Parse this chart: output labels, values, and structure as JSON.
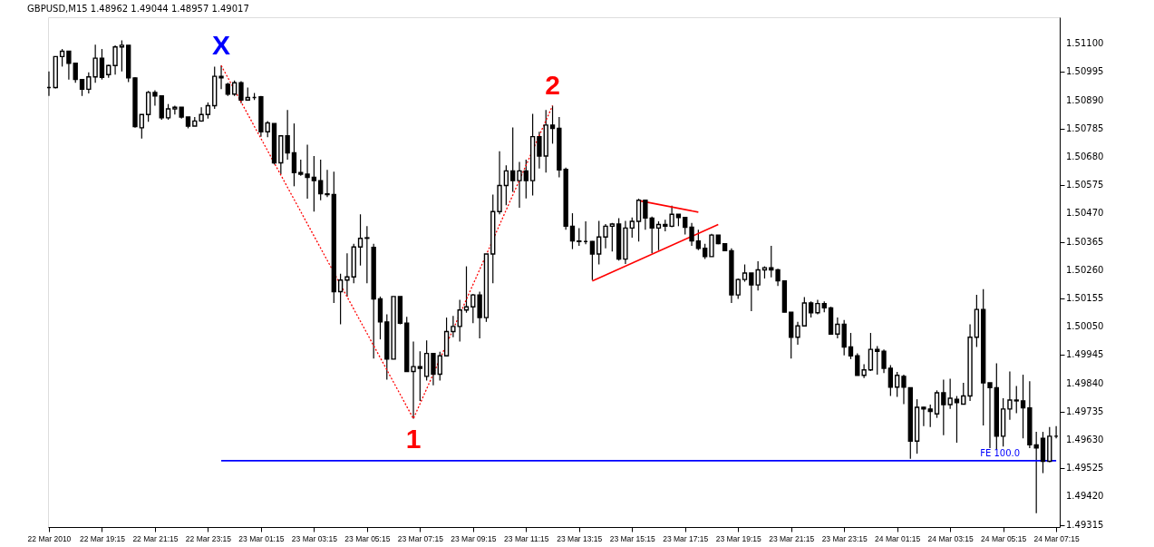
{
  "chart_data": {
    "type": "candlestick",
    "title": "GBPUSD,M15  1.48962 1.49044 1.48957 1.49017",
    "color": "#000000",
    "x": [
      "2010-03-22T17:15",
      "2010-03-22T17:30",
      "2010-03-22T17:45",
      "2010-03-22T18:00",
      "2010-03-22T18:15",
      "2010-03-22T18:30",
      "2010-03-22T18:45",
      "2010-03-22T19:00",
      "2010-03-22T19:15",
      "2010-03-22T19:30",
      "2010-03-22T19:45",
      "2010-03-22T20:00",
      "2010-03-22T20:15",
      "2010-03-22T20:30",
      "2010-03-22T20:45",
      "2010-03-22T21:00",
      "2010-03-22T21:15",
      "2010-03-22T21:30",
      "2010-03-22T21:45",
      "2010-03-22T22:00",
      "2010-03-22T22:15",
      "2010-03-22T22:30",
      "2010-03-22T22:45",
      "2010-03-22T23:00",
      "2010-03-22T23:15",
      "2010-03-22T23:30",
      "2010-03-22T23:45",
      "2010-03-23T00:00",
      "2010-03-23T00:15",
      "2010-03-23T00:30",
      "2010-03-23T00:45",
      "2010-03-23T01:00",
      "2010-03-23T01:15",
      "2010-03-23T01:30",
      "2010-03-23T01:45",
      "2010-03-23T02:00",
      "2010-03-23T02:15",
      "2010-03-23T02:30",
      "2010-03-23T02:45",
      "2010-03-23T03:00",
      "2010-03-23T03:15",
      "2010-03-23T03:30",
      "2010-03-23T03:45",
      "2010-03-23T04:00",
      "2010-03-23T04:15",
      "2010-03-23T04:30",
      "2010-03-23T04:45",
      "2010-03-23T05:00",
      "2010-03-23T05:15",
      "2010-03-23T05:30",
      "2010-03-23T05:45",
      "2010-03-23T06:00",
      "2010-03-23T06:15",
      "2010-03-23T06:30",
      "2010-03-23T06:45",
      "2010-03-23T07:00",
      "2010-03-23T07:15",
      "2010-03-23T07:30",
      "2010-03-23T07:45",
      "2010-03-23T08:00",
      "2010-03-23T08:15",
      "2010-03-23T08:30",
      "2010-03-23T08:45",
      "2010-03-23T09:00",
      "2010-03-23T09:15",
      "2010-03-23T09:30",
      "2010-03-23T09:45",
      "2010-03-23T10:00",
      "2010-03-23T10:15",
      "2010-03-23T10:30",
      "2010-03-23T10:45",
      "2010-03-23T11:00",
      "2010-03-23T11:15",
      "2010-03-23T11:30",
      "2010-03-23T11:45",
      "2010-03-23T12:00",
      "2010-03-23T12:15",
      "2010-03-23T12:30",
      "2010-03-23T12:45",
      "2010-03-23T13:00",
      "2010-03-23T13:15",
      "2010-03-23T13:30",
      "2010-03-23T13:45",
      "2010-03-23T14:00",
      "2010-03-23T14:15",
      "2010-03-23T14:30",
      "2010-03-23T14:45",
      "2010-03-23T15:00",
      "2010-03-23T15:15",
      "2010-03-23T15:30",
      "2010-03-23T15:45",
      "2010-03-23T16:00",
      "2010-03-23T16:15",
      "2010-03-23T16:30",
      "2010-03-23T16:45",
      "2010-03-23T17:00",
      "2010-03-23T17:15",
      "2010-03-23T17:30",
      "2010-03-23T17:45",
      "2010-03-23T18:00",
      "2010-03-23T18:15",
      "2010-03-23T18:30",
      "2010-03-23T18:45",
      "2010-03-23T19:00",
      "2010-03-23T19:15",
      "2010-03-23T19:30",
      "2010-03-23T19:45",
      "2010-03-23T20:00",
      "2010-03-23T20:15",
      "2010-03-23T20:30",
      "2010-03-23T20:45",
      "2010-03-23T21:00",
      "2010-03-23T21:15",
      "2010-03-23T21:30",
      "2010-03-23T21:45",
      "2010-03-23T22:00",
      "2010-03-23T22:15",
      "2010-03-23T22:30",
      "2010-03-23T22:45",
      "2010-03-23T23:00",
      "2010-03-23T23:15",
      "2010-03-23T23:30",
      "2010-03-23T23:45",
      "2010-03-24T00:00",
      "2010-03-24T00:15",
      "2010-03-24T00:30",
      "2010-03-24T00:45",
      "2010-03-24T01:00",
      "2010-03-24T01:15",
      "2010-03-24T01:30",
      "2010-03-24T01:45",
      "2010-03-24T02:00",
      "2010-03-24T02:15",
      "2010-03-24T02:30",
      "2010-03-24T02:45",
      "2010-03-24T03:00",
      "2010-03-24T03:15",
      "2010-03-24T03:30",
      "2010-03-24T03:45",
      "2010-03-24T04:00",
      "2010-03-24T04:15",
      "2010-03-24T04:30",
      "2010-03-24T04:45",
      "2010-03-24T05:00",
      "2010-03-24T05:15",
      "2010-03-24T05:30",
      "2010-03-24T05:45",
      "2010-03-24T06:00",
      "2010-03-24T06:15",
      "2010-03-24T06:30",
      "2010-03-24T06:45",
      "2010-03-24T07:00",
      "2010-03-24T07:15"
    ],
    "ohlc": [
      [
        1.50937,
        1.50997,
        1.50906,
        1.50937
      ],
      [
        1.50937,
        1.51052,
        1.50934,
        1.51052
      ],
      [
        1.51052,
        1.5108,
        1.51015,
        1.51072
      ],
      [
        1.51072,
        1.51072,
        1.50967,
        1.51027
      ],
      [
        1.51027,
        1.5103,
        1.50955,
        1.50967
      ],
      [
        1.50967,
        1.50967,
        1.50906,
        1.50931
      ],
      [
        1.50931,
        1.50994,
        1.50915,
        1.50977
      ],
      [
        1.50977,
        1.51096,
        1.50955,
        1.51046
      ],
      [
        1.51046,
        1.5108,
        1.50967,
        1.50975
      ],
      [
        1.50985,
        1.51021,
        1.50973,
        1.51019
      ],
      [
        1.51019,
        1.51094,
        1.50985,
        1.51088
      ],
      [
        1.51088,
        1.51112,
        1.50997,
        1.51094
      ],
      [
        1.51094,
        1.51094,
        1.50957,
        1.50973
      ],
      [
        1.50973,
        1.50975,
        1.50788,
        1.50792
      ],
      [
        1.50788,
        1.50837,
        1.50748,
        1.50837
      ],
      [
        1.50837,
        1.50925,
        1.5081,
        1.50919
      ],
      [
        1.50919,
        1.50927,
        1.5087,
        1.50906
      ],
      [
        1.50906,
        1.50906,
        1.50818,
        1.50825
      ],
      [
        1.50825,
        1.50876,
        1.50818,
        1.50858
      ],
      [
        1.50858,
        1.5087,
        1.50837,
        1.50864
      ],
      [
        1.50864,
        1.50864,
        1.50822,
        1.50828
      ],
      [
        1.50828,
        1.50828,
        1.50786,
        1.50794
      ],
      [
        1.50794,
        1.50828,
        1.50794,
        1.50813
      ],
      [
        1.50813,
        1.50864,
        1.5081,
        1.50837
      ],
      [
        1.50837,
        1.50882,
        1.50822,
        1.5087
      ],
      [
        1.5087,
        1.51015,
        1.50858,
        1.50979
      ],
      [
        1.50979,
        1.51019,
        1.50931,
        1.50973
      ],
      [
        1.50949,
        1.50955,
        1.50906,
        1.50913
      ],
      [
        1.50913,
        1.50963,
        1.50906,
        1.50955
      ],
      [
        1.50955,
        1.50961,
        1.50879,
        1.50891
      ],
      [
        1.50891,
        1.50937,
        1.50889,
        1.509
      ],
      [
        1.509,
        1.50917,
        1.50891,
        1.509
      ],
      [
        1.50903,
        1.50906,
        1.50755,
        1.50773
      ],
      [
        1.50773,
        1.50813,
        1.50753,
        1.50806
      ],
      [
        1.50804,
        1.50804,
        1.50652,
        1.50658
      ],
      [
        1.50658,
        1.50761,
        1.50616,
        1.50758
      ],
      [
        1.50758,
        1.50854,
        1.5067,
        1.50695
      ],
      [
        1.50695,
        1.50804,
        1.50571,
        1.50622
      ],
      [
        1.50622,
        1.5067,
        1.5061,
        1.50616
      ],
      [
        1.50616,
        1.50725,
        1.50525,
        1.50604
      ],
      [
        1.50604,
        1.50683,
        1.50477,
        1.50592
      ],
      [
        1.50592,
        1.5067,
        1.50519,
        1.50543
      ],
      [
        1.50543,
        1.50632,
        1.50531,
        1.5054
      ],
      [
        1.5054,
        1.50625,
        1.50138,
        1.5018
      ],
      [
        1.5018,
        1.50247,
        1.50059,
        1.50223
      ],
      [
        1.50223,
        1.50322,
        1.50162,
        1.50235
      ],
      [
        1.50235,
        1.50358,
        1.50211,
        1.50346
      ],
      [
        1.50346,
        1.50467,
        1.50277,
        1.50378
      ],
      [
        1.50378,
        1.50423,
        1.50211,
        1.5038
      ],
      [
        1.50344,
        1.50358,
        1.49932,
        1.50153
      ],
      [
        1.50153,
        1.50162,
        1.50003,
        1.50068
      ],
      [
        1.50068,
        1.50096,
        1.49854,
        1.4993
      ],
      [
        1.4993,
        1.50162,
        1.4993,
        1.50162
      ],
      [
        1.50162,
        1.50162,
        1.50059,
        1.50063
      ],
      [
        1.50063,
        1.50087,
        1.49882,
        1.49884
      ],
      [
        1.49884,
        1.49995,
        1.49709,
        1.49902
      ],
      [
        1.49902,
        1.49959,
        1.49775,
        1.49896
      ],
      [
        1.49866,
        1.49999,
        1.4985,
        1.49951
      ],
      [
        1.49951,
        1.49951,
        1.49833,
        1.49874
      ],
      [
        1.49874,
        1.49957,
        1.4985,
        1.49942
      ],
      [
        1.49942,
        1.50084,
        1.49942,
        1.50032
      ],
      [
        1.50032,
        1.5009,
        1.50011,
        1.50051
      ],
      [
        1.50051,
        1.5015,
        1.49995,
        1.50112
      ],
      [
        1.50112,
        1.50274,
        1.50102,
        1.50124
      ],
      [
        1.50124,
        1.50172,
        1.50063,
        1.50168
      ],
      [
        1.50168,
        1.5018,
        1.50007,
        1.50084
      ],
      [
        1.50084,
        1.5032,
        1.50068,
        1.5032
      ],
      [
        1.5032,
        1.5054,
        1.50211,
        1.50477
      ],
      [
        1.50477,
        1.50701,
        1.50467,
        1.50574
      ],
      [
        1.50574,
        1.50649,
        1.50501,
        1.50628
      ],
      [
        1.50628,
        1.50789,
        1.5055,
        1.50592
      ],
      [
        1.50592,
        1.50661,
        1.50491,
        1.50628
      ],
      [
        1.50628,
        1.5067,
        1.50526,
        1.50592
      ],
      [
        1.50592,
        1.5084,
        1.50537,
        1.50755
      ],
      [
        1.50755,
        1.50773,
        1.50637,
        1.50683
      ],
      [
        1.50683,
        1.50854,
        1.50622,
        1.50798
      ],
      [
        1.50798,
        1.5087,
        1.50729,
        1.50786
      ],
      [
        1.50786,
        1.50828,
        1.50604,
        1.50632
      ],
      [
        1.50634,
        1.5064,
        1.5041,
        1.50423
      ],
      [
        1.50423,
        1.50471,
        1.50338,
        1.50368
      ],
      [
        1.50368,
        1.50416,
        1.5035,
        1.50366
      ],
      [
        1.50366,
        1.50441,
        1.50356,
        1.50366
      ],
      [
        1.50366,
        1.50368,
        1.50223,
        1.5032
      ],
      [
        1.5032,
        1.50443,
        1.50281,
        1.50383
      ],
      [
        1.50383,
        1.50431,
        1.50341,
        1.50423
      ],
      [
        1.50423,
        1.50435,
        1.50329,
        1.50431
      ],
      [
        1.50431,
        1.50453,
        1.50295,
        1.50301
      ],
      [
        1.50301,
        1.50443,
        1.50283,
        1.50416
      ],
      [
        1.50416,
        1.50455,
        1.5038,
        1.50441
      ],
      [
        1.50441,
        1.50525,
        1.50366,
        1.50519
      ],
      [
        1.50519,
        1.50519,
        1.5041,
        1.50453
      ],
      [
        1.50453,
        1.50459,
        1.50322,
        1.50416
      ],
      [
        1.50416,
        1.50441,
        1.50334,
        1.50429
      ],
      [
        1.50429,
        1.50447,
        1.50404,
        1.50423
      ],
      [
        1.50423,
        1.50499,
        1.50419,
        1.50467
      ],
      [
        1.50467,
        1.50467,
        1.50423,
        1.50455
      ],
      [
        1.50455,
        1.50455,
        1.50392,
        1.50419
      ],
      [
        1.50419,
        1.50435,
        1.5035,
        1.50368
      ],
      [
        1.50368,
        1.5041,
        1.50334,
        1.50341
      ],
      [
        1.50341,
        1.50358,
        1.50301,
        1.5031
      ],
      [
        1.5031,
        1.50395,
        1.5031,
        1.5039
      ],
      [
        1.5039,
        1.5039,
        1.50356,
        1.50358
      ],
      [
        1.50358,
        1.50358,
        1.50332,
        1.50332
      ],
      [
        1.50332,
        1.50341,
        1.50138,
        1.50168
      ],
      [
        1.50168,
        1.50229,
        1.50153,
        1.50225
      ],
      [
        1.50225,
        1.50281,
        1.50217,
        1.50249
      ],
      [
        1.50249,
        1.50249,
        1.50108,
        1.50205
      ],
      [
        1.50205,
        1.50293,
        1.50184,
        1.50261
      ],
      [
        1.50261,
        1.50274,
        1.50229,
        1.50269
      ],
      [
        1.50269,
        1.5035,
        1.50233,
        1.50261
      ],
      [
        1.50261,
        1.50265,
        1.50201,
        1.5022
      ],
      [
        1.5022,
        1.5022,
        1.50104,
        1.50104
      ],
      [
        1.50104,
        1.50104,
        1.49932,
        1.50011
      ],
      [
        1.50011,
        1.50068,
        1.49983,
        1.50053
      ],
      [
        1.50053,
        1.5016,
        1.50053,
        1.50138
      ],
      [
        1.50138,
        1.50144,
        1.50084,
        1.50102
      ],
      [
        1.50102,
        1.5015,
        1.50096,
        1.50136
      ],
      [
        1.50136,
        1.50144,
        1.50104,
        1.5012
      ],
      [
        1.5012,
        1.50124,
        1.5002,
        1.50023
      ],
      [
        1.50023,
        1.50084,
        1.50007,
        1.50059
      ],
      [
        1.50059,
        1.50075,
        1.49944,
        1.49975
      ],
      [
        1.49975,
        1.50027,
        1.4993,
        1.49942
      ],
      [
        1.49942,
        1.49951,
        1.4987,
        1.4987
      ],
      [
        1.4987,
        1.49911,
        1.4986,
        1.4989
      ],
      [
        1.4989,
        1.50027,
        1.49886,
        1.49966
      ],
      [
        1.49966,
        1.49978,
        1.49872,
        1.49959
      ],
      [
        1.49959,
        1.49966,
        1.49878,
        1.49896
      ],
      [
        1.49896,
        1.49908,
        1.49793,
        1.49826
      ],
      [
        1.49826,
        1.49882,
        1.4979,
        1.4987
      ],
      [
        1.49866,
        1.49872,
        1.49763,
        1.49826
      ],
      [
        1.49824,
        1.49824,
        1.4956,
        1.49626
      ],
      [
        1.49626,
        1.49781,
        1.49579,
        1.49751
      ],
      [
        1.49751,
        1.49753,
        1.49681,
        1.49745
      ],
      [
        1.49745,
        1.49761,
        1.49678,
        1.49736
      ],
      [
        1.49727,
        1.49814,
        1.49712,
        1.49805
      ],
      [
        1.49805,
        1.49854,
        1.49648,
        1.49761
      ],
      [
        1.49761,
        1.49857,
        1.49745,
        1.49785
      ],
      [
        1.49781,
        1.49793,
        1.4962,
        1.49769
      ],
      [
        1.49763,
        1.49842,
        1.49763,
        1.49793
      ],
      [
        1.49793,
        1.50059,
        1.49775,
        1.50011
      ],
      [
        1.50011,
        1.50168,
        1.49975,
        1.50114
      ],
      [
        1.50114,
        1.50189,
        1.49684,
        1.49842
      ],
      [
        1.49842,
        1.49842,
        1.496,
        1.49824
      ],
      [
        1.49824,
        1.49914,
        1.49594,
        1.49644
      ],
      [
        1.49644,
        1.49785,
        1.49606,
        1.49745
      ],
      [
        1.49745,
        1.49884,
        1.49705,
        1.49778
      ],
      [
        1.49778,
        1.4983,
        1.49729,
        1.49775
      ],
      [
        1.49775,
        1.49872,
        1.49636,
        1.49749
      ],
      [
        1.49749,
        1.49848,
        1.496,
        1.49612
      ],
      [
        1.49612,
        1.4966,
        1.49358,
        1.496
      ],
      [
        1.49636,
        1.4966,
        1.49507,
        1.49551
      ],
      [
        1.49551,
        1.49678,
        1.49548,
        1.49644
      ],
      [
        1.49644,
        1.49681,
        1.49636,
        1.49644
      ]
    ],
    "series": [
      {
        "type": "line",
        "color": "#ff0000",
        "line_style": "dotted",
        "x": [
          "2010-03-22T23:45",
          "2010-03-23T07:00",
          "2010-03-23T12:15"
        ],
        "values": [
          1.51019,
          1.49709,
          1.5087
        ]
      },
      {
        "type": "line",
        "color": "#ff0000",
        "line_style": "solid",
        "x": [
          "2010-03-23T15:30",
          "2010-03-23T17:45"
        ],
        "values": [
          1.50518,
          1.50475
        ]
      },
      {
        "type": "line",
        "color": "#ff0000",
        "line_style": "solid",
        "x": [
          "2010-03-23T13:45",
          "2010-03-23T18:30"
        ],
        "values": [
          1.5022,
          1.50429
        ]
      },
      {
        "type": "line",
        "name": "FE 100.0",
        "color": "#0000ff",
        "line_style": "solid",
        "x": [
          "2010-03-22T23:45",
          "2010-03-24T07:15"
        ],
        "values": [
          1.49553,
          1.49553
        ]
      }
    ],
    "annotations": [
      {
        "text": "X",
        "x": "2010-03-22T23:45",
        "y": 1.51019
      },
      {
        "text": "1",
        "x": "2010-03-23T07:00",
        "y": 1.49709
      },
      {
        "text": "2",
        "x": "2010-03-23T12:15",
        "y": 1.5087
      }
    ],
    "xlim": [
      "2010-03-22T17:13",
      "2010-03-24T07:23"
    ],
    "xticks": [
      {
        "value": "2010-03-22T17:15",
        "label": "22 Mar 2010"
      },
      {
        "value": "2010-03-22T19:15",
        "label": "22 Mar 19:15"
      },
      {
        "value": "2010-03-22T21:15",
        "label": "22 Mar 21:15"
      },
      {
        "value": "2010-03-22T23:15",
        "label": "22 Mar 23:15"
      },
      {
        "value": "2010-03-23T01:15",
        "label": "23 Mar 01:15"
      },
      {
        "value": "2010-03-23T03:15",
        "label": "23 Mar 03:15"
      },
      {
        "value": "2010-03-23T05:15",
        "label": "23 Mar 05:15"
      },
      {
        "value": "2010-03-23T07:15",
        "label": "23 Mar 07:15"
      },
      {
        "value": "2010-03-23T09:15",
        "label": "23 Mar 09:15"
      },
      {
        "value": "2010-03-23T11:15",
        "label": "23 Mar 11:15"
      },
      {
        "value": "2010-03-23T13:15",
        "label": "23 Mar 13:15"
      },
      {
        "value": "2010-03-23T15:15",
        "label": "23 Mar 15:15"
      },
      {
        "value": "2010-03-23T17:15",
        "label": "23 Mar 17:15"
      },
      {
        "value": "2010-03-23T19:15",
        "label": "23 Mar 19:15"
      },
      {
        "value": "2010-03-23T21:15",
        "label": "23 Mar 21:15"
      },
      {
        "value": "2010-03-23T23:15",
        "label": "23 Mar 23:15"
      },
      {
        "value": "2010-03-24T01:15",
        "label": "24 Mar 01:15"
      },
      {
        "value": "2010-03-24T03:15",
        "label": "24 Mar 03:15"
      },
      {
        "value": "2010-03-24T05:15",
        "label": "24 Mar 05:15"
      },
      {
        "value": "2010-03-24T07:15",
        "label": "24 Mar 07:15"
      }
    ],
    "ylim": [
      1.49307,
      1.51198
    ],
    "yticks": [
      1.49315,
      {
        "value": 1.4942,
        "label": "1.49420"
      },
      1.49525,
      {
        "value": 1.4963,
        "label": "1.49630"
      },
      1.49735,
      {
        "value": 1.4984,
        "label": "1.49840"
      },
      1.49945,
      {
        "value": 1.5005,
        "label": "1.50050"
      },
      1.50155,
      {
        "value": 1.5026,
        "label": "1.50260"
      },
      1.50365,
      {
        "value": 1.5047,
        "label": "1.50470"
      },
      1.50575,
      {
        "value": 1.5068,
        "label": "1.50680"
      },
      1.50785,
      {
        "value": 1.5089,
        "label": "1.50890"
      },
      1.50995,
      {
        "value": 1.511,
        "label": "1.51100"
      }
    ]
  }
}
